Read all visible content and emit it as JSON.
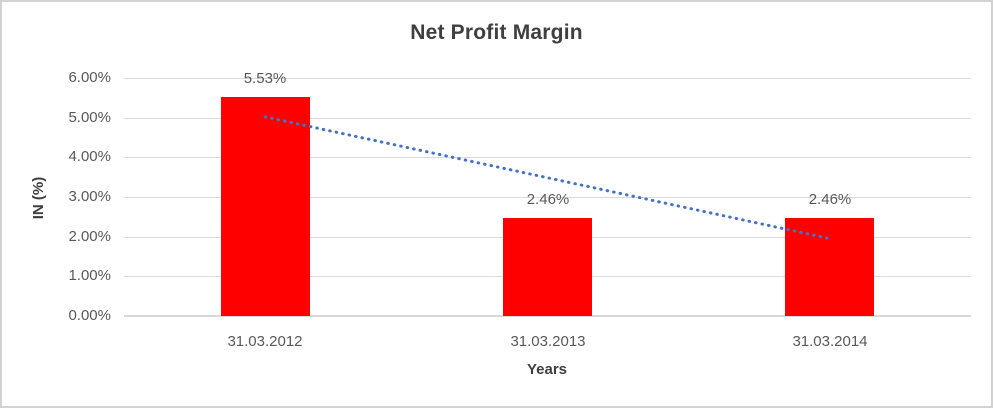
{
  "window": {
    "background_color": "#ffffff",
    "border_color": "#d2d2d2"
  },
  "chart_data": {
    "type": "bar",
    "title": "Net Profit Margin",
    "xlabel": "Years",
    "ylabel": "IN (%)",
    "categories": [
      "31.03.2012",
      "31.03.2013",
      "31.03.2014"
    ],
    "values": [
      5.53,
      2.46,
      2.46
    ],
    "data_labels": [
      "5.53%",
      "2.46%",
      "2.46%"
    ],
    "ylim": [
      0,
      6
    ],
    "ytick_step": 1,
    "ytick_labels": [
      "0.00%",
      "1.00%",
      "2.00%",
      "3.00%",
      "4.00%",
      "5.00%",
      "6.00%"
    ],
    "grid": true,
    "legend": "none",
    "bar_color": "#ff0000",
    "gridline_color": "#d9d9d9",
    "text_color": "#595959",
    "title_color": "#3f3f3f",
    "trendline": {
      "type": "linear",
      "style": "dotted",
      "color": "#4472c4",
      "start_value": 5.02,
      "end_value": 1.95
    }
  }
}
